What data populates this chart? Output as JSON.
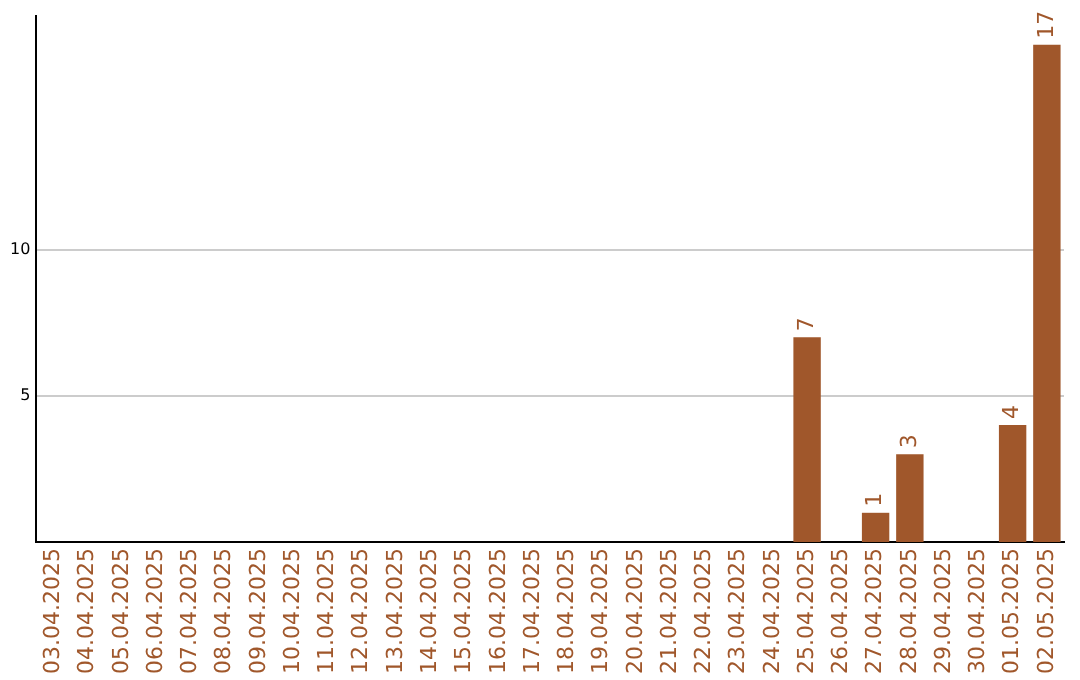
{
  "chart_data": {
    "type": "bar",
    "categories": [
      "03.04.2025",
      "04.04.2025",
      "05.04.2025",
      "06.04.2025",
      "07.04.2025",
      "08.04.2025",
      "09.04.2025",
      "10.04.2025",
      "11.04.2025",
      "12.04.2025",
      "13.04.2025",
      "14.04.2025",
      "15.04.2025",
      "16.04.2025",
      "17.04.2025",
      "18.04.2025",
      "19.04.2025",
      "20.04.2025",
      "21.04.2025",
      "22.04.2025",
      "23.04.2025",
      "24.04.2025",
      "25.04.2025",
      "26.04.2025",
      "27.04.2025",
      "28.04.2025",
      "29.04.2025",
      "30.04.2025",
      "01.05.2025",
      "02.05.2025"
    ],
    "values": [
      0,
      0,
      0,
      0,
      0,
      0,
      0,
      0,
      0,
      0,
      0,
      0,
      0,
      0,
      0,
      0,
      0,
      0,
      0,
      0,
      0,
      0,
      7,
      0,
      1,
      3,
      0,
      0,
      4,
      17
    ],
    "value_labels": [
      null,
      null,
      null,
      null,
      null,
      null,
      null,
      null,
      null,
      null,
      null,
      null,
      null,
      null,
      null,
      null,
      null,
      null,
      null,
      null,
      null,
      null,
      "7",
      null,
      "1",
      "3",
      null,
      null,
      "4",
      "17"
    ],
    "color": "#a0572b",
    "ylim": [
      0,
      18
    ],
    "yticks": [
      5,
      10
    ],
    "grid": "y"
  }
}
